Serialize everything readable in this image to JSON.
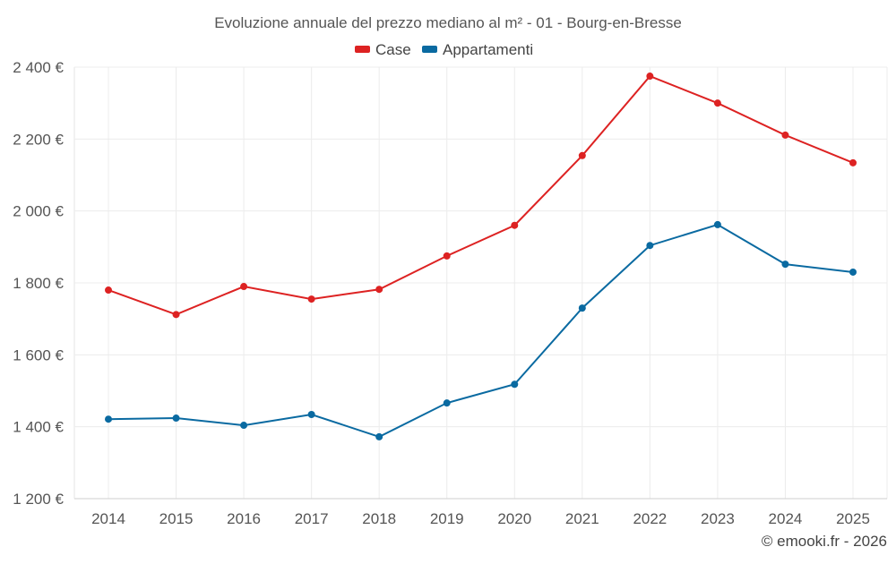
{
  "chart_data": {
    "type": "line",
    "title": "Evoluzione annuale del prezzo mediano al m² - 01 - Bourg-en-Bresse",
    "categories": [
      "2014",
      "2015",
      "2016",
      "2017",
      "2018",
      "2019",
      "2020",
      "2021",
      "2022",
      "2023",
      "2024",
      "2025"
    ],
    "series": [
      {
        "name": "Case",
        "color": "#dd2222",
        "values": [
          1780,
          1712,
          1790,
          1755,
          1782,
          1875,
          1960,
          2154,
          2375,
          2300,
          2211,
          2134
        ]
      },
      {
        "name": "Appartamenti",
        "color": "#0a6aa1",
        "values": [
          1421,
          1424,
          1404,
          1434,
          1372,
          1466,
          1518,
          1730,
          1904,
          1962,
          1852,
          1830
        ]
      }
    ],
    "ylim": [
      1200,
      2400
    ],
    "yticks": [
      1200,
      1400,
      1600,
      1800,
      2000,
      2200,
      2400
    ],
    "ytick_labels": [
      "1 200 €",
      "1 400 €",
      "1 600 €",
      "1 800 €",
      "2 000 €",
      "2 200 €",
      "2 400 €"
    ],
    "xlabel": "",
    "ylabel": "",
    "grid": true,
    "legend_position": "top-center"
  },
  "credit": "© emooki.fr - 2026"
}
